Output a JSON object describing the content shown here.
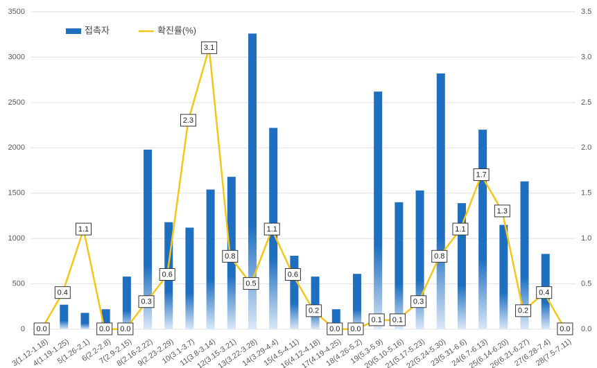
{
  "chart_data": {
    "type": "bar-line",
    "categories": [
      "3(1.12-1.18)",
      "4(1.19-1.25)",
      "5(1.26-2.1)",
      "6(2.2-2.8)",
      "7(2.9-2.15)",
      "8(2.16-2.22)",
      "9(2.23-2.29)",
      "10(3.1-3.7)",
      "11(3.8-3.14)",
      "12(3.15-3.21)",
      "13(3.22-3.28)",
      "14(3.29-4.4)",
      "15(4.5-4.11)",
      "16(4.12-4.18)",
      "17(4.19-4.25)",
      "18(4.26-5.2)",
      "19(5.3-5.9)",
      "20(5.10-5.16)",
      "21(5.17-5.23)",
      "22(5.24-5.30)",
      "23(5.31-6.6)",
      "24(6.7-6.13)",
      "25(6.14-6.20)",
      "26(6.21-6.27)",
      "27(6.28-7.4)",
      "28(7.5-7.11)"
    ],
    "series": [
      {
        "name": "접촉자",
        "type": "bar",
        "color": "#1f6fc0",
        "values": [
          0,
          270,
          180,
          220,
          580,
          1980,
          1180,
          1120,
          1540,
          1680,
          3260,
          2220,
          810,
          580,
          220,
          610,
          2620,
          1400,
          1530,
          2820,
          1390,
          2200,
          1150,
          1630,
          830,
          0
        ]
      },
      {
        "name": "확진률(%)",
        "type": "line",
        "axis": "y2",
        "color": "#f5c518",
        "values": [
          0,
          0.4,
          1.1,
          0,
          0,
          0.3,
          0.6,
          2.3,
          3.1,
          0.8,
          0.5,
          1.1,
          0.6,
          0.2,
          0,
          0,
          0.1,
          0.1,
          0.3,
          0.8,
          1.1,
          1.7,
          1.3,
          0.2,
          0.4,
          0
        ],
        "value_labels": [
          "0.0",
          "0.4",
          "1.1",
          "0.0",
          "0.0",
          "0.3",
          "0.6",
          "2.3",
          "3.1",
          "0.8",
          "0.5",
          "1.1",
          "0.6",
          "0.2",
          "0.0",
          "0.0",
          "0.1",
          "0.1",
          "0.3",
          "0.8",
          "1.1",
          "1.7",
          "1.3",
          "0.2",
          "0.4",
          "0.0"
        ]
      }
    ],
    "ylim": [
      0,
      3500
    ],
    "yticks": [
      0,
      500,
      1000,
      1500,
      2000,
      2500,
      3000,
      3500
    ],
    "y2lim": [
      0,
      3.5
    ],
    "y2ticks": [
      {
        "value": 0,
        "label": "0.0"
      },
      {
        "value": 0.5,
        "label": "0.5"
      },
      {
        "value": 1,
        "label": "1.0"
      },
      {
        "value": 1.5,
        "label": "1.5"
      },
      {
        "value": 2,
        "label": "2.0"
      },
      {
        "value": 2.5,
        "label": "2.5"
      },
      {
        "value": 3,
        "label": "3.0"
      },
      {
        "value": 3.5,
        "label": "3.5"
      }
    ],
    "grid": true,
    "legend": "top-left"
  }
}
